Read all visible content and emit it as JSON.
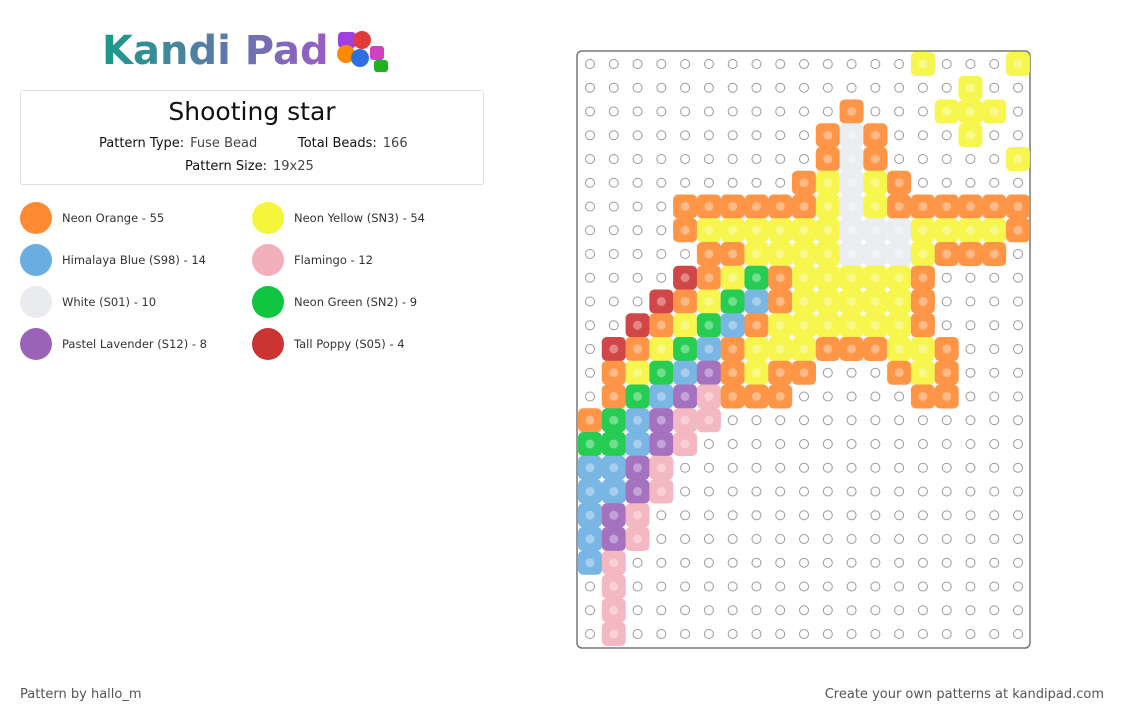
{
  "logo": "Kandi Pad",
  "pattern": {
    "title": "Shooting star",
    "type_label": "Pattern Type:",
    "type": "Fuse Bead",
    "beads_label": "Total Beads:",
    "beads": 166,
    "size_label": "Pattern Size:",
    "size": "19x25"
  },
  "legend": [
    {
      "label": "Neon Orange - 55",
      "color": "#ff8a33"
    },
    {
      "label": "Neon Yellow (SN3) - 54",
      "color": "#f5f53b"
    },
    {
      "label": "Himalaya Blue (S98) - 14",
      "color": "#6aaee0"
    },
    {
      "label": "Flamingo - 12",
      "color": "#f2b0ba"
    },
    {
      "label": "White (S01) - 10",
      "color": "#e9ebef"
    },
    {
      "label": "Neon Green (SN2) - 9",
      "color": "#10c640"
    },
    {
      "label": "Pastel Lavender (S12) - 8",
      "color": "#9a63b8"
    },
    {
      "label": "Tall Poppy (S05) - 4",
      "color": "#cc3333"
    }
  ],
  "footer": {
    "author": "Pattern by hallo_m",
    "cta": "Create your own patterns at kandipad.com"
  }
}
